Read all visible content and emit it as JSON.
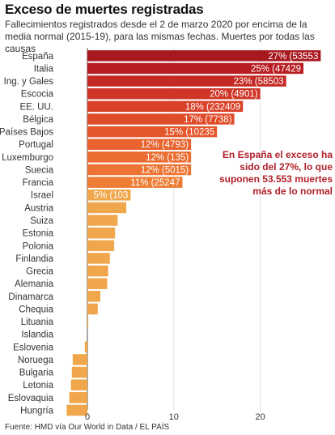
{
  "title": "Exceso de muertes registradas",
  "subtitle": "Fallecimientos registrados desde el 2 de marzo 2020 por encima de la media normal (2015-19), para las mismas fechas. Muertes por todas las causas",
  "annotation": "En España el exceso ha sido del 27%, lo que suponen 53.553 muertes más de lo normal",
  "source": "Fuente: HMD vía Our World in Data / EL PAÍS",
  "colors": {
    "dark": "#a8181f",
    "mid": "#e8632e",
    "light": "#f0a64a",
    "annotation": "#b0202a"
  },
  "chart_data": {
    "type": "bar",
    "orientation": "horizontal",
    "categories": [
      "España",
      "Italia",
      "Ing. y Gales",
      "Escocia",
      "EE. UU.",
      "Bélgica",
      "Países Bajos",
      "Portugal",
      "Luxemburgo",
      "Suecia",
      "Francia",
      "Israel",
      "Austria",
      "Suiza",
      "Estonia",
      "Polonia",
      "Finlandia",
      "Grecia",
      "Alemania",
      "Dinamarca",
      "Chequia",
      "Lituania",
      "Islandia",
      "Eslovenia",
      "Noruega",
      "Bulgaria",
      "Letonia",
      "Eslovaquia",
      "Hungría"
    ],
    "values": [
      27,
      25,
      23,
      20,
      18,
      17,
      15,
      12,
      12,
      12,
      11,
      5,
      4.5,
      3.5,
      3.2,
      3.1,
      2.6,
      2.4,
      2.3,
      1.5,
      1.2,
      0.1,
      0,
      -0.3,
      -1.7,
      -1.8,
      -1.9,
      -2.1,
      -2.4
    ],
    "data_labels": [
      "27% (53553",
      "25% (47429",
      "23% (58503",
      "20% (4901)",
      "18% (232409",
      "17% (7738)",
      "15% (10235",
      "12% (4793)",
      "12% (135)",
      "12% (5015)",
      "11% (25247",
      "5% (103",
      "",
      "",
      "",
      "",
      "",
      "",
      "",
      "",
      "",
      "",
      "",
      "",
      "",
      "",
      "",
      "",
      ""
    ],
    "x_ticks": [
      0,
      10,
      20
    ],
    "xlim": [
      -2.6,
      28
    ],
    "grid": true
  }
}
